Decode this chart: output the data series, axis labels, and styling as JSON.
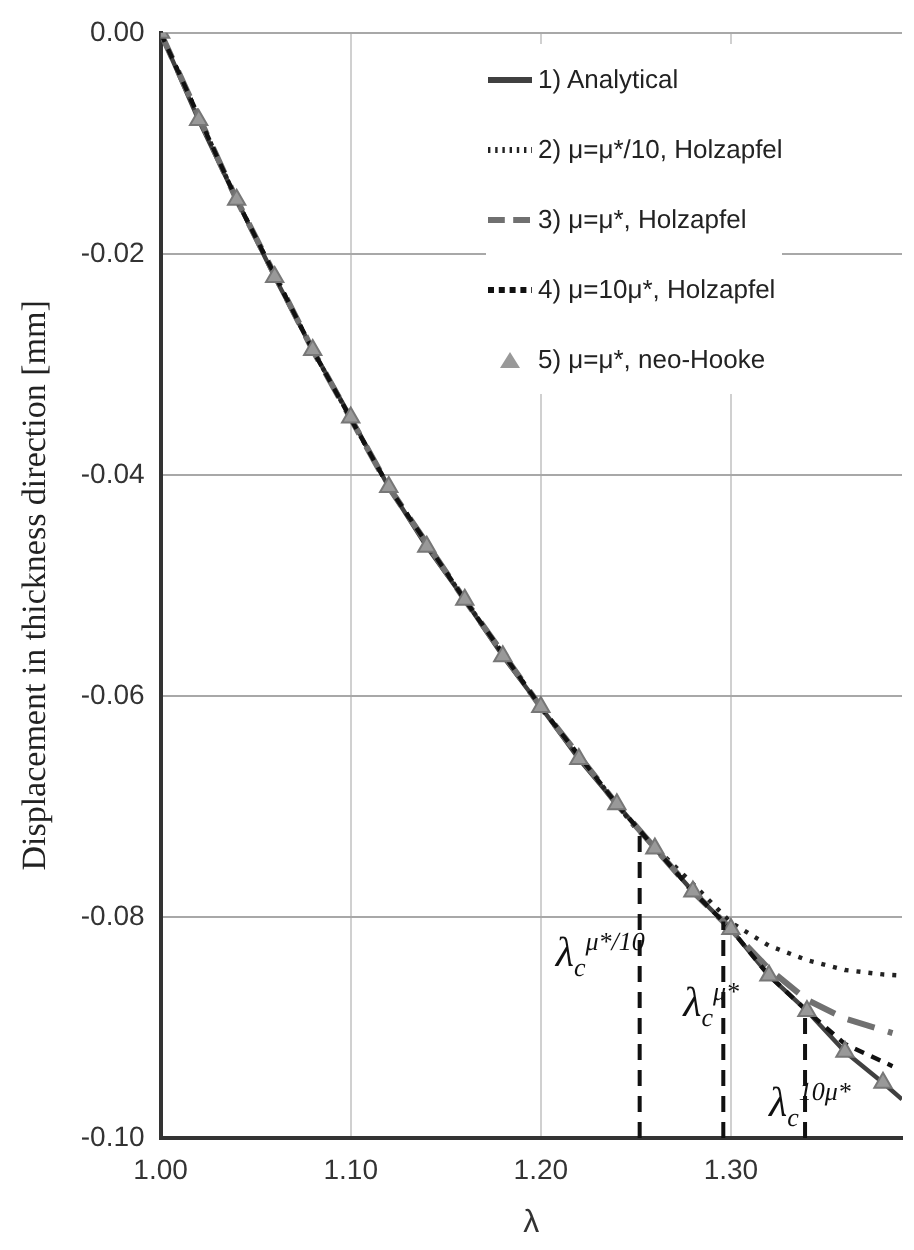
{
  "chart_data": {
    "type": "line",
    "xlabel": "λ",
    "ylabel": "Displacement in thickness direction [mm]",
    "xlim": [
      1.0,
      1.39
    ],
    "xticks": [
      {
        "value": 1.0,
        "label": "1.00"
      },
      {
        "value": 1.1,
        "label": "1.10"
      },
      {
        "value": 1.2,
        "label": "1.20"
      },
      {
        "value": 1.3,
        "label": "1.30"
      }
    ],
    "ylim": [
      -0.1,
      0
    ],
    "yticks": [
      {
        "value": -0.1,
        "label": "-0.10"
      },
      {
        "value": -0.08,
        "label": "-0.08"
      },
      {
        "value": -0.06,
        "label": "-0.06"
      },
      {
        "value": -0.04,
        "label": "-0.04"
      },
      {
        "value": -0.02,
        "label": "-0.02"
      },
      {
        "value": 0,
        "label": "0.00"
      }
    ],
    "grid": true,
    "legend": "top right",
    "series": [
      {
        "name": "1) Analytical",
        "color": "#404040",
        "line_style": "solid",
        "marker": "none",
        "x": [
          1.0,
          1.02,
          1.04,
          1.06,
          1.08,
          1.1,
          1.12,
          1.14,
          1.16,
          1.18,
          1.2,
          1.22,
          1.24,
          1.26,
          1.28,
          1.3,
          1.32,
          1.34,
          1.36,
          1.38,
          1.39
        ],
        "values": [
          0,
          -0.0079,
          -0.0151,
          -0.0221,
          -0.0287,
          -0.0348,
          -0.0411,
          -0.0465,
          -0.0513,
          -0.0564,
          -0.061,
          -0.0657,
          -0.0698,
          -0.0738,
          -0.0777,
          -0.0811,
          -0.0853,
          -0.0885,
          -0.0922,
          -0.095,
          -0.0965
        ]
      },
      {
        "name": "2) μ=μ*/10, Holzapfel",
        "color": "#222222",
        "line_style": "dotted",
        "marker": "none",
        "x": [
          1.0,
          1.04,
          1.08,
          1.12,
          1.16,
          1.2,
          1.24,
          1.25,
          1.28,
          1.3,
          1.32,
          1.34,
          1.36,
          1.38,
          1.39
        ],
        "values": [
          0,
          -0.0151,
          -0.0287,
          -0.0411,
          -0.0513,
          -0.061,
          -0.0698,
          -0.072,
          -0.077,
          -0.0805,
          -0.0826,
          -0.0839,
          -0.0848,
          -0.0852,
          -0.0853
        ]
      },
      {
        "name": "3) μ=μ*, Holzapfel",
        "color": "#707070",
        "line_style": "dashed",
        "marker": "none",
        "x": [
          1.0,
          1.04,
          1.08,
          1.12,
          1.16,
          1.2,
          1.24,
          1.28,
          1.3,
          1.32,
          1.34,
          1.36,
          1.385
        ],
        "values": [
          0,
          -0.0151,
          -0.0287,
          -0.0411,
          -0.0513,
          -0.061,
          -0.0698,
          -0.0777,
          -0.0811,
          -0.0847,
          -0.0875,
          -0.0892,
          -0.0905
        ]
      },
      {
        "name": "4) μ=10μ*, Holzapfel",
        "color": "#111111",
        "line_style": "dashed",
        "marker": "none",
        "x": [
          1.0,
          1.04,
          1.08,
          1.12,
          1.16,
          1.2,
          1.24,
          1.28,
          1.3,
          1.32,
          1.34,
          1.36,
          1.385
        ],
        "values": [
          0,
          -0.0151,
          -0.0287,
          -0.0411,
          -0.0513,
          -0.061,
          -0.0698,
          -0.0777,
          -0.0811,
          -0.0853,
          -0.0885,
          -0.0915,
          -0.0935
        ]
      },
      {
        "name": "5) μ=μ*, neo-Hooke",
        "type": "scatter",
        "color": "#999999",
        "marker": "triangle",
        "x": [
          1.0,
          1.02,
          1.04,
          1.06,
          1.08,
          1.1,
          1.12,
          1.14,
          1.16,
          1.18,
          1.2,
          1.22,
          1.24,
          1.26,
          1.28,
          1.3,
          1.32,
          1.34,
          1.36,
          1.38
        ],
        "values": [
          0,
          -0.0079,
          -0.0151,
          -0.0221,
          -0.0287,
          -0.0348,
          -0.0411,
          -0.0465,
          -0.0513,
          -0.0564,
          -0.061,
          -0.0657,
          -0.0698,
          -0.0738,
          -0.0777,
          -0.0811,
          -0.0853,
          -0.0885,
          -0.0922,
          -0.095
        ]
      }
    ],
    "ref_lines": [
      {
        "axis": "x",
        "value": 1.252,
        "label": "λ$_{c}$$^{μ*/10}$",
        "color": "#111111",
        "line_style": "dashed"
      },
      {
        "axis": "x",
        "value": 1.296,
        "label": "λ$_{c}$$^{μ*}$",
        "color": "#111111",
        "line_style": "dashed"
      },
      {
        "axis": "x",
        "value": 1.339,
        "label": "λ$_{c}$$^{10μ*}$",
        "color": "#111111",
        "line_style": "dashed"
      }
    ]
  }
}
